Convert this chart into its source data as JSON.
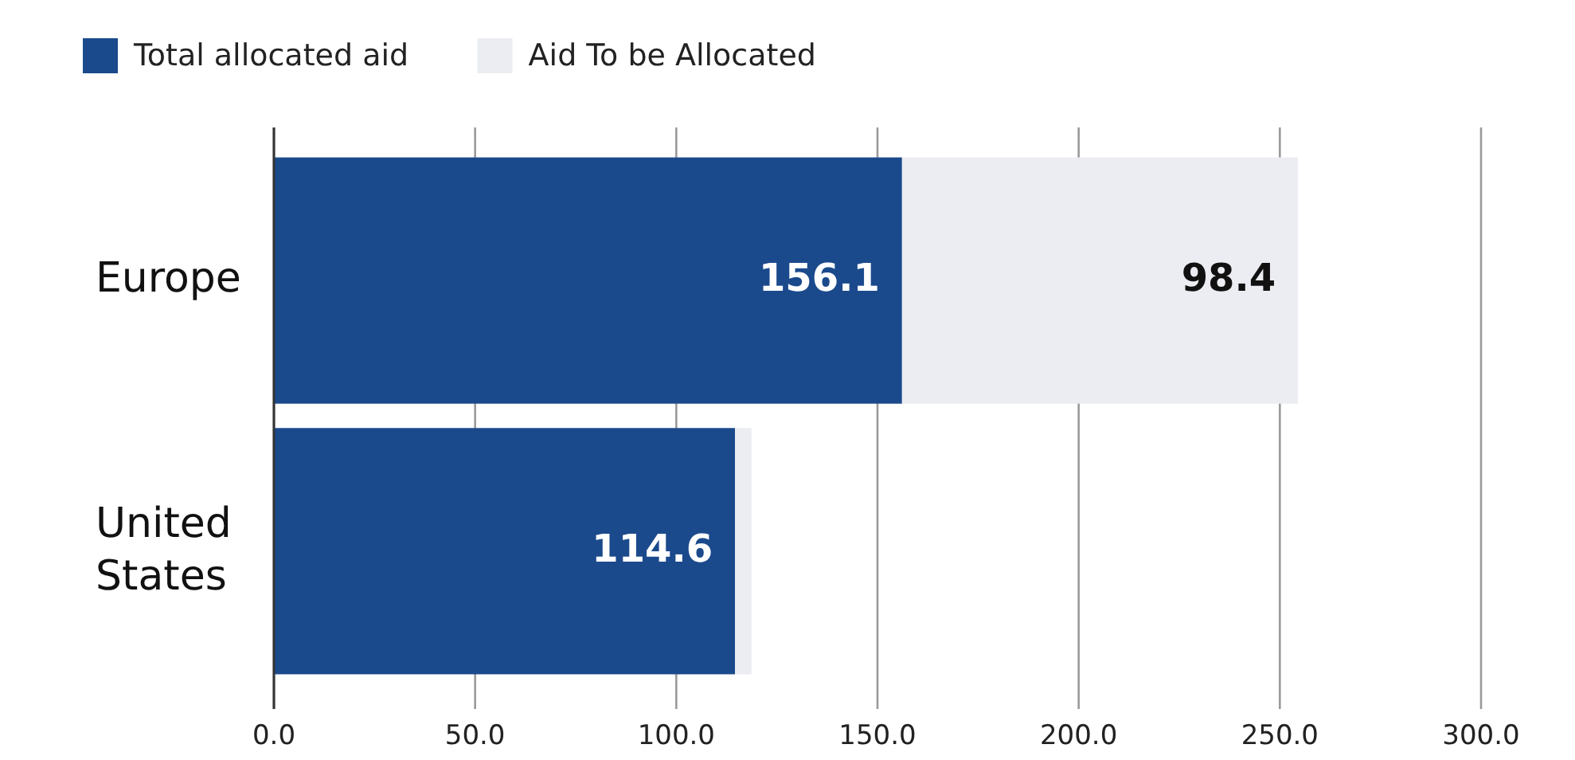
{
  "chart_data": {
    "type": "bar",
    "orientation": "horizontal",
    "stacked": true,
    "categories": [
      "Europe",
      "United States"
    ],
    "series": [
      {
        "name": "Total allocated aid",
        "color": "#1b4a8c",
        "values": [
          156.1,
          114.6
        ],
        "value_labels": [
          "156.1",
          "114.6"
        ]
      },
      {
        "name": "Aid To be Allocated",
        "color": "#ebedf2",
        "values": [
          98.4,
          4.1
        ],
        "value_labels": [
          "98.4",
          null
        ]
      }
    ],
    "xlim": [
      0,
      300
    ],
    "xticks": [
      {
        "value": 0,
        "label": "0.0"
      },
      {
        "value": 50,
        "label": "50.0"
      },
      {
        "value": 100,
        "label": "100.0"
      },
      {
        "value": 150,
        "label": "150.0"
      },
      {
        "value": 200,
        "label": "200.0"
      },
      {
        "value": 250,
        "label": "250.0"
      },
      {
        "value": 300,
        "label": "300.0"
      }
    ],
    "grid": "x",
    "legend": "top left"
  }
}
